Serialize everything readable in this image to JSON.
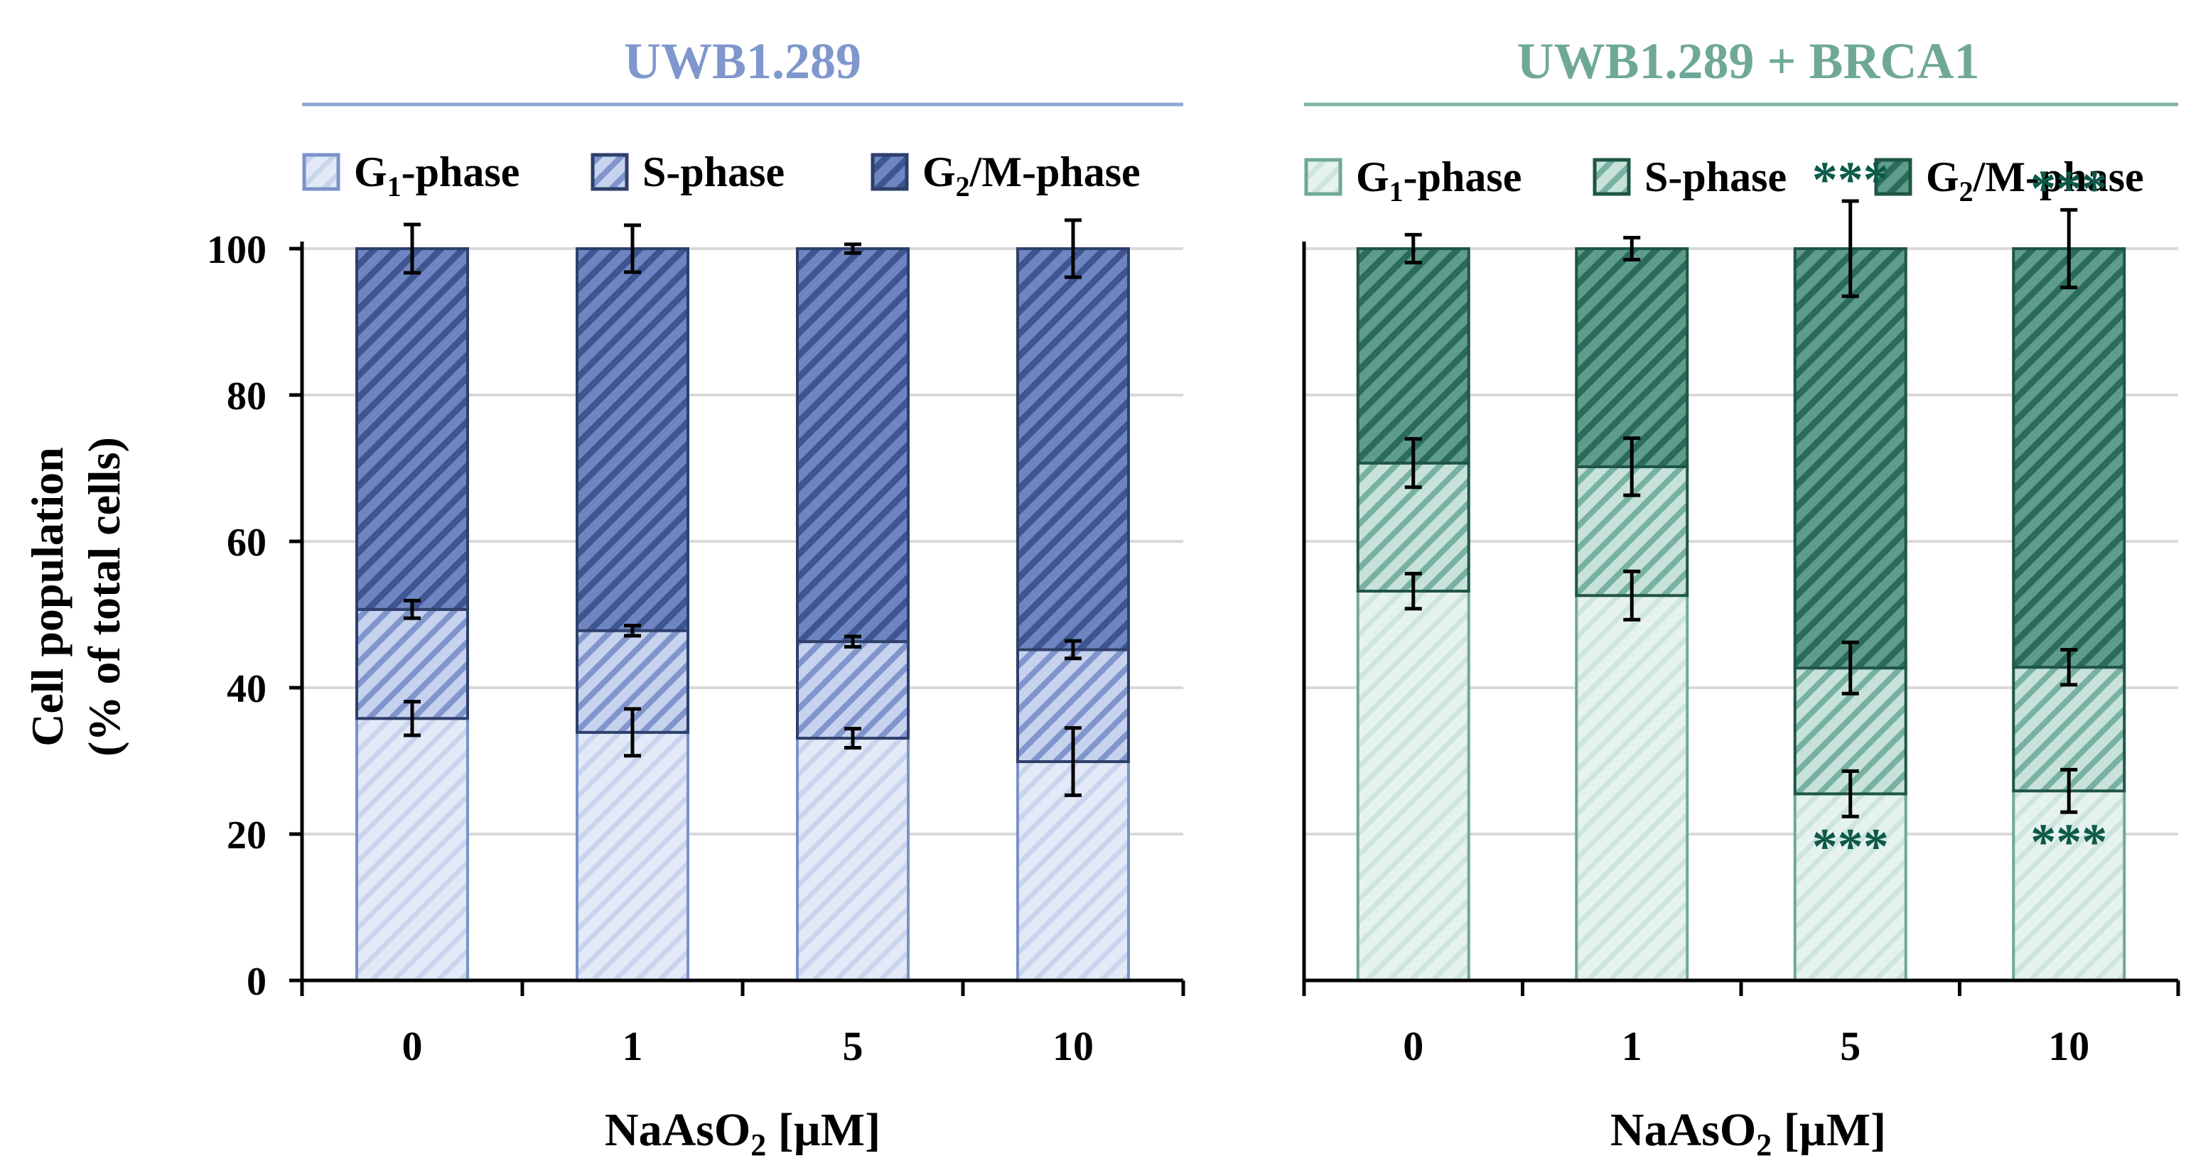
{
  "chart_data": {
    "type": "bar",
    "stacked": true,
    "y_axis": {
      "label_line1": "Cell population",
      "label_line2": "(% of total cells)",
      "ylim": [
        0,
        100
      ],
      "ticks": [
        "0",
        "20",
        "40",
        "60",
        "80",
        "100"
      ],
      "gridlines": true
    },
    "x_axis": {
      "label_prefix": "NaAsO",
      "label_subscript": "2",
      "label_suffix": " [µM]"
    },
    "categories": [
      "0",
      "1",
      "5",
      "10"
    ],
    "panels": [
      {
        "title": "UWB1.289",
        "colors": {
          "title": "#7f97cc",
          "edge": "#7b92c9",
          "edge_dark": "#2e3f6b",
          "g1_fill": "#e3e9f6",
          "g1_hatch": "#c9d4ee",
          "s_fill": "#c6d2ee",
          "s_hatch": "#7f95cb",
          "g2m_fill": "#6e85c2",
          "g2m_hatch": "#3e5592",
          "sig": "#3e5592"
        },
        "legend": [
          {
            "name": "G",
            "sub": "1",
            "suffix": "-phase"
          },
          {
            "name": "S-phase",
            "sub": "",
            "suffix": ""
          },
          {
            "name": "G",
            "sub": "2",
            "suffix": "/M-phase"
          }
        ],
        "series": [
          {
            "name": "G1-phase",
            "values": [
              35.8,
              33.9,
              33.1,
              29.9
            ],
            "errors": [
              2.3,
              3.2,
              1.3,
              4.6
            ]
          },
          {
            "name": "S-phase",
            "values": [
              14.9,
              13.9,
              13.2,
              15.3
            ],
            "errors": [
              1.2,
              0.7,
              0.7,
              1.2
            ]
          },
          {
            "name": "G2/M-phase",
            "values": [
              49.3,
              52.2,
              53.7,
              54.8
            ],
            "errors": [
              3.3,
              3.2,
              0.6,
              3.9
            ]
          }
        ],
        "significance": [
          {
            "category_index": 2,
            "series": "G2/M-phase",
            "label": ""
          },
          {
            "category_index": 3,
            "series": "G2/M-phase",
            "label": ""
          }
        ]
      },
      {
        "title": "UWB1.289 + BRCA1",
        "colors": {
          "title": "#6fa899",
          "edge": "#6fa899",
          "edge_dark": "#1f5547",
          "g1_fill": "#e6f2ee",
          "g1_hatch": "#cde5de",
          "s_fill": "#c7e2da",
          "s_hatch": "#78b0a1",
          "g2m_fill": "#5f9c8b",
          "g2m_hatch": "#2b6b5b",
          "sig": "#0d5a49"
        },
        "legend": [
          {
            "name": "G",
            "sub": "1",
            "suffix": "-phase"
          },
          {
            "name": "S-phase",
            "sub": "",
            "suffix": ""
          },
          {
            "name": "G",
            "sub": "2",
            "suffix": "/M-phase"
          }
        ],
        "series": [
          {
            "name": "G1-phase",
            "values": [
              53.2,
              52.6,
              25.5,
              25.9
            ],
            "errors": [
              2.4,
              3.3,
              3.1,
              2.9
            ]
          },
          {
            "name": "S-phase",
            "values": [
              17.5,
              17.6,
              17.2,
              16.9
            ],
            "errors": [
              3.3,
              3.9,
              3.5,
              2.4
            ]
          },
          {
            "name": "G2/M-phase",
            "values": [
              29.3,
              29.8,
              57.3,
              57.2
            ],
            "errors": [
              1.9,
              1.5,
              6.5,
              5.3
            ]
          }
        ],
        "significance": [
          {
            "category_index": 2,
            "series": "G2/M-phase",
            "label": "***"
          },
          {
            "category_index": 3,
            "series": "G2/M-phase",
            "label": "***"
          },
          {
            "category_index": 2,
            "series": "G1-phase",
            "label": "***"
          },
          {
            "category_index": 3,
            "series": "G1-phase",
            "label": "***"
          }
        ]
      }
    ]
  }
}
